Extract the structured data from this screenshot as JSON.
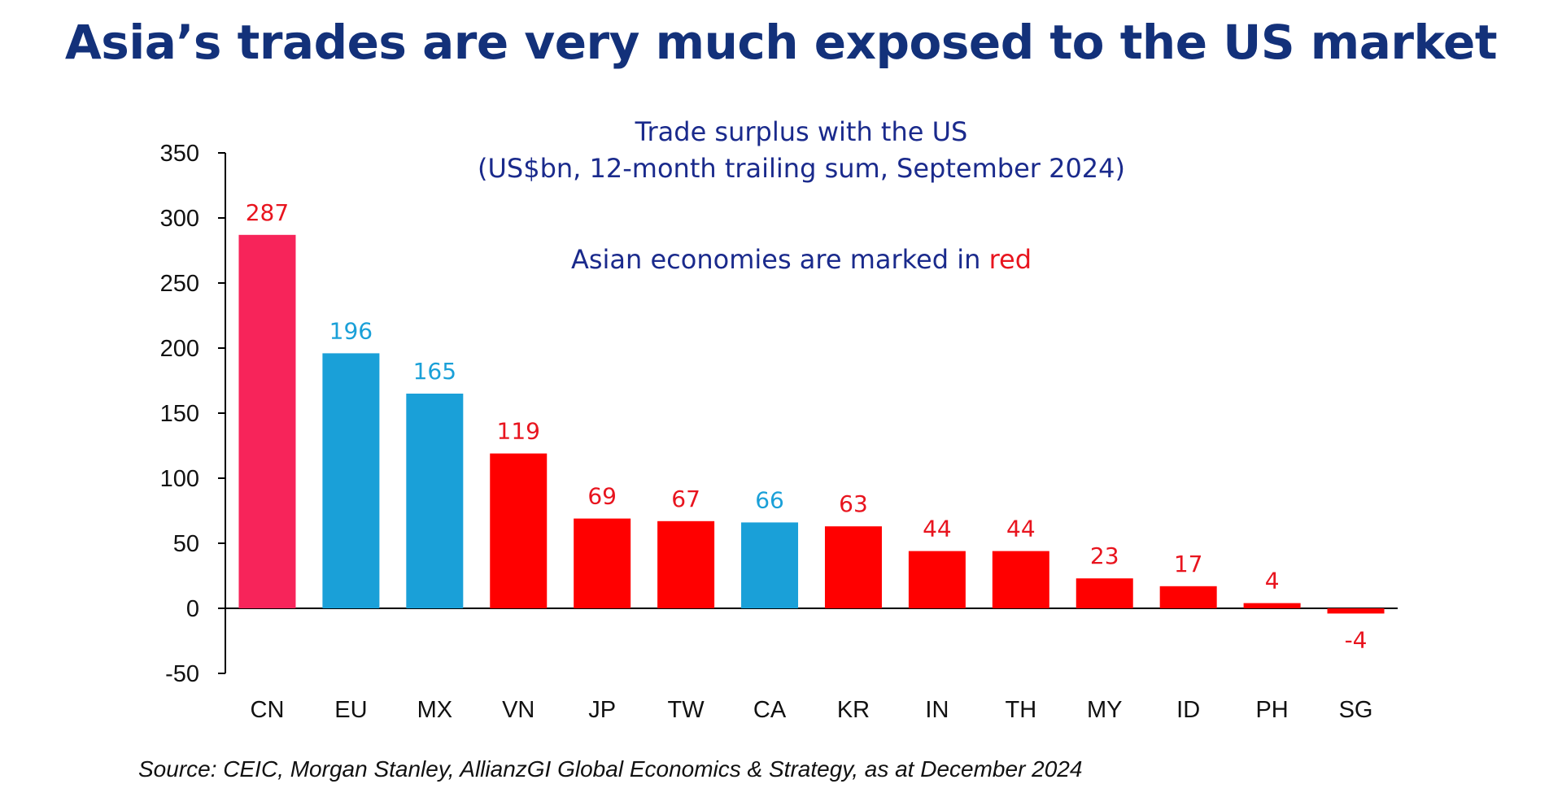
{
  "title": "Asia’s trades are very much exposed to the US market",
  "source": "Source: CEIC, Morgan Stanley, AllianzGI Global Economics & Strategy, as at December 2024",
  "colors": {
    "title": "#13317a",
    "subtitle": "#1a2a8c",
    "china": "#f7245a",
    "asian": "#ff0000",
    "non_asian": "#1aa0d8",
    "label_asian": "#e8141e",
    "label_non_asian": "#1aa0d8"
  },
  "chart_data": {
    "type": "bar",
    "title": "Trade surplus with the US",
    "subtitle": "(US$bn, 12-month trailing sum, September 2024)",
    "note": "Asian economies are marked in",
    "note_highlight": "red",
    "categories": [
      "CN",
      "EU",
      "MX",
      "VN",
      "JP",
      "TW",
      "CA",
      "KR",
      "IN",
      "TH",
      "MY",
      "ID",
      "PH",
      "SG"
    ],
    "values": [
      287,
      196,
      165,
      119,
      69,
      67,
      66,
      63,
      44,
      44,
      23,
      17,
      4,
      -4
    ],
    "asian": [
      true,
      false,
      false,
      true,
      true,
      true,
      false,
      true,
      true,
      true,
      true,
      true,
      true,
      true
    ],
    "ylim": [
      -50,
      350
    ],
    "yticks": [
      350,
      300,
      250,
      200,
      150,
      100,
      50,
      0,
      -50
    ],
    "grid": false,
    "legend": "none"
  }
}
